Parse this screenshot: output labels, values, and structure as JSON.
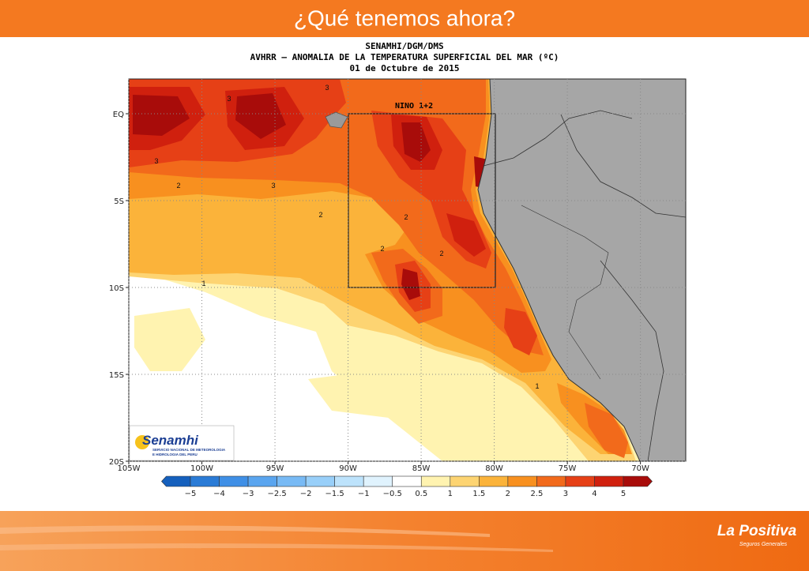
{
  "header": {
    "title": "¿Qué tenemos ahora?"
  },
  "map": {
    "title_lines": [
      "SENAMHI/DGM/DMS",
      "AVHRR – ANOMALIA DE LA TEMPERATURA SUPERFICIAL DEL MAR (ºC)",
      "01 de Octubre de 2015"
    ],
    "box_label": "NINO 1+2",
    "lonlim": [
      -105,
      -66.9
    ],
    "latlim": [
      2,
      -20
    ],
    "lon_ticks": [
      {
        "value": -105,
        "label": "105W"
      },
      {
        "value": -100,
        "label": "100W"
      },
      {
        "value": -95,
        "label": "95W"
      },
      {
        "value": -90,
        "label": "90W"
      },
      {
        "value": -85,
        "label": "85W"
      },
      {
        "value": -80,
        "label": "80W"
      },
      {
        "value": -75,
        "label": "75W"
      },
      {
        "value": -70,
        "label": "70W"
      }
    ],
    "lat_ticks": [
      {
        "value": 0,
        "label": "EQ"
      },
      {
        "value": -5,
        "label": "5S"
      },
      {
        "value": -10,
        "label": "10S"
      },
      {
        "value": -15,
        "label": "15S"
      },
      {
        "value": -20,
        "label": "20S"
      }
    ],
    "contour_labels": [
      "3",
      "3",
      "3",
      "2",
      "3",
      "2",
      "2",
      "2",
      "1",
      "2",
      "1"
    ]
  },
  "colorbar": {
    "labels": [
      {
        "value": -5,
        "label": "−5"
      },
      {
        "value": -4,
        "label": "−4"
      },
      {
        "value": -3,
        "label": "−3"
      },
      {
        "value": -2.5,
        "label": "−2.5"
      },
      {
        "value": -2,
        "label": "−2"
      },
      {
        "value": -1.5,
        "label": "−1.5"
      },
      {
        "value": -1,
        "label": "−1"
      },
      {
        "value": -0.5,
        "label": "−0.5"
      },
      0.5,
      1,
      1.5,
      2,
      2.5,
      3,
      4,
      5
    ],
    "colors": [
      "#1560bd",
      "#2a7bd6",
      "#3f8fe6",
      "#5aa5ef",
      "#78baf5",
      "#98cff9",
      "#bde3fc",
      "#e0f3fe",
      "#ffffff",
      "#fff3b0",
      "#fdd472",
      "#fbb33a",
      "#f8901f",
      "#f26a1b",
      "#e64016",
      "#d0200e",
      "#a80c0a"
    ]
  },
  "logo": {
    "name": "Senamhi",
    "subtitle_lines": [
      "SERVICIO NACIONAL DE METEOROLOGIA",
      "E HIDROLOGIA DEL PERU"
    ]
  },
  "footer": {
    "brand": "La Positiva",
    "tagline": "Seguros Generales"
  }
}
